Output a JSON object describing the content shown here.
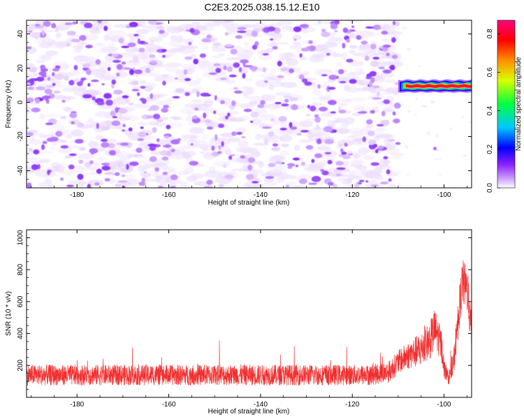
{
  "title": "C2E3.2025.038.15.12.E10",
  "chart_data": [
    {
      "type": "heatmap",
      "xlabel": "Height of straight line (km)",
      "ylabel": "Frequency (Hz)",
      "xlim": [
        -191,
        -94
      ],
      "ylim": [
        -50,
        48
      ],
      "x_ticks": [
        -180,
        -160,
        -140,
        -120,
        -100
      ],
      "y_ticks": [
        -40,
        -20,
        0,
        20,
        40
      ],
      "colorbar": {
        "label": "Normalized spectral amplitude",
        "range": [
          0,
          0.87
        ],
        "ticks": [
          0.0,
          0.2,
          0.4,
          0.6,
          0.8
        ],
        "colormap": [
          "#ffffff",
          "#b070ff",
          "#6a00ff",
          "#0000ff",
          "#00c0ff",
          "#00ff40",
          "#f0ff00",
          "#ff8000",
          "#ff0000",
          "#ff0080"
        ]
      },
      "noise_region": {
        "x_range": [
          -191,
          -110
        ],
        "frequency_range": [
          -50,
          48
        ],
        "typical_amplitude": [
          0.02,
          0.15
        ]
      },
      "signal": {
        "start_height": -110,
        "end_height": -94,
        "frequency_hz": 9.5,
        "peak_amplitude": 0.85
      },
      "isolated_blip": {
        "x": -102,
        "frequency_hz": -27,
        "amplitude": 0.1
      }
    },
    {
      "type": "line",
      "xlabel": "Height of straight line (km)",
      "ylabel": "SNR (10 * v/v)",
      "xlim": [
        -191,
        -94
      ],
      "ylim": [
        0,
        1050
      ],
      "x_ticks": [
        -180,
        -160,
        -140,
        -120,
        -100
      ],
      "y_ticks": [
        200,
        400,
        600,
        800,
        1000
      ],
      "series": [
        {
          "color": "#f03030",
          "profile": {
            "x": [
              -191,
              -170,
              -150,
              -130,
              -116,
              -112,
              -110,
              -108,
              -105,
              -103,
              -102,
              -100.5,
              -100,
              -99,
              -98,
              -96.5,
              -96,
              -95,
              -94
            ],
            "center": [
              140,
              140,
              140,
              140,
              140,
              160,
              220,
              260,
              300,
              360,
              430,
              320,
              180,
              120,
              200,
              600,
              720,
              680,
              400
            ],
            "spread": [
              65,
              65,
              65,
              65,
              65,
              70,
              75,
              85,
              110,
              120,
              130,
              100,
              60,
              40,
              80,
              140,
              150,
              140,
              110
            ]
          }
        }
      ]
    }
  ]
}
